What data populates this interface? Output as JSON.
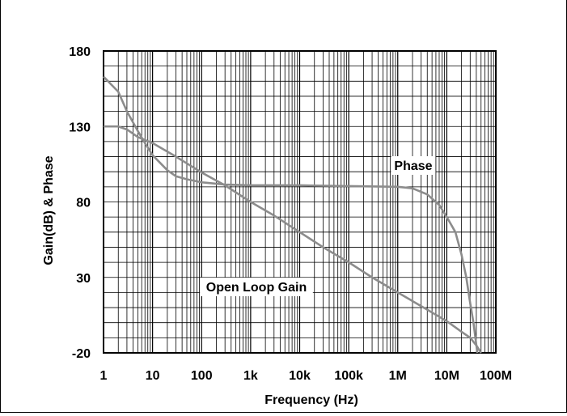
{
  "chart_data": {
    "type": "line",
    "title": "",
    "xlabel": "Frequency (Hz)",
    "ylabel": "Gain(dB) & Phase",
    "xscale": "log",
    "xlim": [
      1,
      100000000
    ],
    "ylim": [
      -20,
      180
    ],
    "grid": true,
    "x_ticks": [
      {
        "value": 1,
        "label": "1"
      },
      {
        "value": 10,
        "label": "10"
      },
      {
        "value": 100,
        "label": "100"
      },
      {
        "value": 1000,
        "label": "1k"
      },
      {
        "value": 10000,
        "label": "10k"
      },
      {
        "value": 100000,
        "label": "100k"
      },
      {
        "value": 1000000,
        "label": "1M"
      },
      {
        "value": 10000000,
        "label": "10M"
      },
      {
        "value": 100000000,
        "label": "100M"
      }
    ],
    "y_ticks": [
      {
        "value": 180,
        "label": "180"
      },
      {
        "value": 130,
        "label": "130"
      },
      {
        "value": 80,
        "label": "80"
      },
      {
        "value": 30,
        "label": "30"
      },
      {
        "value": -20,
        "label": "-20"
      }
    ],
    "series": [
      {
        "name": "Open Loop Gain",
        "color": "#8c8c8c",
        "points": [
          [
            1,
            130
          ],
          [
            2,
            130
          ],
          [
            3,
            128
          ],
          [
            5,
            123
          ],
          [
            10,
            119
          ],
          [
            30,
            110
          ],
          [
            100,
            99.5
          ],
          [
            300,
            91
          ],
          [
            1000,
            80
          ],
          [
            3000,
            71
          ],
          [
            10000,
            60
          ],
          [
            30000,
            50
          ],
          [
            100000,
            40
          ],
          [
            300000,
            30
          ],
          [
            1000000,
            20
          ],
          [
            3000000,
            11
          ],
          [
            10000000,
            1
          ],
          [
            20000000,
            -6
          ],
          [
            30000000,
            -10
          ],
          [
            40000000,
            -15
          ],
          [
            50000000,
            -20
          ]
        ]
      },
      {
        "name": "Phase",
        "color": "#8c8c8c",
        "points": [
          [
            1,
            163
          ],
          [
            2,
            153
          ],
          [
            3,
            140
          ],
          [
            5,
            127
          ],
          [
            7,
            119
          ],
          [
            10,
            111
          ],
          [
            20,
            101
          ],
          [
            30,
            97
          ],
          [
            50,
            95
          ],
          [
            100,
            93
          ],
          [
            300,
            91.5
          ],
          [
            1000,
            91
          ],
          [
            10000,
            91
          ],
          [
            100000,
            90.5
          ],
          [
            1000000,
            90
          ],
          [
            2000000,
            89
          ],
          [
            4000000,
            85
          ],
          [
            7000000,
            78
          ],
          [
            10000000,
            70
          ],
          [
            15000000,
            60
          ],
          [
            20000000,
            45
          ],
          [
            25000000,
            30
          ],
          [
            30000000,
            13
          ],
          [
            35000000,
            0
          ],
          [
            42000000,
            -20
          ]
        ]
      }
    ],
    "annotations": [
      {
        "text": "Phase",
        "series": "Phase"
      },
      {
        "text": "Open Loop Gain",
        "series": "Open Loop Gain"
      }
    ]
  }
}
